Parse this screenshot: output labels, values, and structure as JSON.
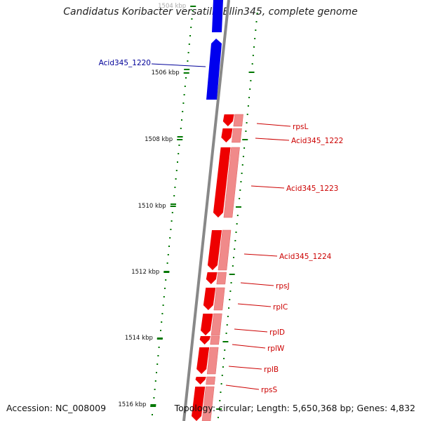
{
  "title": "Candidatus Koribacter versatilis Ellin345, complete genome",
  "accession": "Accession: NC_008009",
  "topology": "Topology: circular; Length: 5,650,368 bp; Genes: 4,832",
  "colors": {
    "positive_strand": "#0000ee",
    "negative_strand": "#ee0000",
    "negative_strand_light": "#f08a8a",
    "backbone": "#888888",
    "tick": "#007700",
    "blue_label": "#000099",
    "red_label": "#cc0000"
  },
  "scale_labels": [
    "1504 kbp",
    "1506 kbp",
    "1508 kbp",
    "1510 kbp",
    "1512 kbp",
    "1514 kbp",
    "1516 kbp"
  ],
  "genes": [
    {
      "name": "Acid345_1220",
      "strand": "+"
    },
    {
      "name": "rpsL",
      "strand": "-"
    },
    {
      "name": "Acid345_1222",
      "strand": "-"
    },
    {
      "name": "Acid345_1223",
      "strand": "-"
    },
    {
      "name": "Acid345_1224",
      "strand": "-"
    },
    {
      "name": "rpsJ",
      "strand": "-"
    },
    {
      "name": "rplC",
      "strand": "-"
    },
    {
      "name": "rplD",
      "strand": "-"
    },
    {
      "name": "rplW",
      "strand": "-"
    },
    {
      "name": "rplB",
      "strand": "-"
    },
    {
      "name": "rpsS",
      "strand": "-"
    }
  ]
}
